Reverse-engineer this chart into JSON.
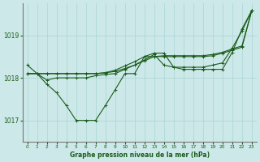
{
  "bg_color": "#cce8e8",
  "grid_color": "#aad4d4",
  "line_color": "#1a5c1a",
  "title": "Graphe pression niveau de la mer (hPa)",
  "xlim": [
    -0.5,
    23.5
  ],
  "ylim": [
    1016.5,
    1019.75
  ],
  "yticks": [
    1017,
    1018,
    1019
  ],
  "xtick_labels": [
    "0",
    "1",
    "2",
    "3",
    "4",
    "5",
    "6",
    "7",
    "8",
    "9",
    "10",
    "11",
    "12",
    "13",
    "14",
    "15",
    "16",
    "17",
    "18",
    "19",
    "20",
    "21",
    "22",
    "23"
  ],
  "s1": [
    1018.3,
    1018.1,
    1017.85,
    1017.65,
    1017.35,
    1017.0,
    1017.0,
    1017.0,
    1017.35,
    1017.72,
    1018.1,
    1018.1,
    1018.5,
    1018.58,
    1018.58,
    1018.25,
    1018.2,
    1018.2,
    1018.2,
    1018.2,
    1018.2,
    1018.6,
    1019.15,
    1019.58
  ],
  "s2": [
    1018.1,
    1018.1,
    1017.95,
    1018.0,
    1018.0,
    1018.0,
    1018.0,
    1018.05,
    1018.08,
    1018.1,
    1018.2,
    1018.3,
    1018.42,
    1018.55,
    1018.3,
    1018.25,
    1018.25,
    1018.25,
    1018.25,
    1018.3,
    1018.35,
    1018.7,
    1019.1,
    1019.58
  ],
  "s3": [
    1018.1,
    1018.1,
    1018.1,
    1018.1,
    1018.1,
    1018.1,
    1018.1,
    1018.1,
    1018.12,
    1018.15,
    1018.22,
    1018.3,
    1018.4,
    1018.5,
    1018.5,
    1018.5,
    1018.5,
    1018.5,
    1018.5,
    1018.52,
    1018.58,
    1018.65,
    1018.72,
    1019.58
  ],
  "s4": [
    1018.1,
    1018.1,
    1018.1,
    1018.1,
    1018.1,
    1018.1,
    1018.1,
    1018.1,
    1018.12,
    1018.18,
    1018.28,
    1018.38,
    1018.5,
    1018.5,
    1018.52,
    1018.52,
    1018.52,
    1018.52,
    1018.52,
    1018.55,
    1018.6,
    1018.68,
    1018.75,
    1019.58
  ]
}
